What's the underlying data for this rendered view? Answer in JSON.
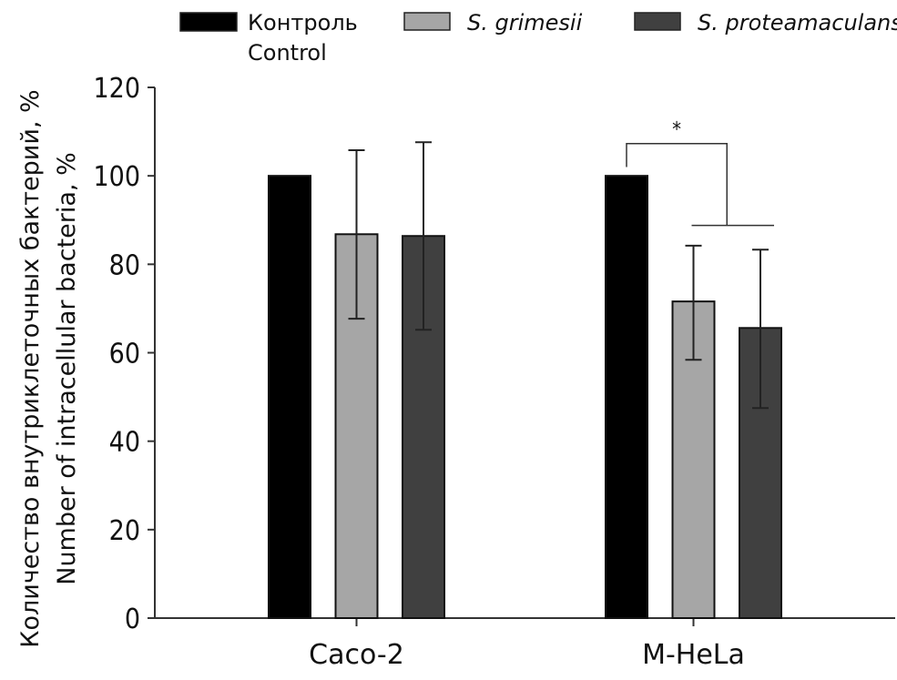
{
  "chart_data": {
    "type": "bar",
    "categories": [
      "Caco-2",
      "M-HeLa"
    ],
    "series": [
      {
        "name": "Контроль",
        "name_en": "Control",
        "color": "#000000",
        "values": [
          100,
          100
        ],
        "err_low": [
          null,
          null
        ],
        "err_high": [
          null,
          null
        ]
      },
      {
        "name": "S. grimesii",
        "color": "#a6a6a6",
        "values": [
          86.8,
          71.6
        ],
        "err_low": [
          67.7,
          58.4
        ],
        "err_high": [
          105.8,
          84.2
        ]
      },
      {
        "name": "S. proteamaculans",
        "color": "#404040",
        "values": [
          86.4,
          65.6
        ],
        "err_low": [
          65.2,
          47.5
        ],
        "err_high": [
          107.6,
          83.3
        ]
      }
    ],
    "ylabel": "Количество внутриклеточных бактерий, %",
    "ylabel_en": "Number of intracellular bacteria, %",
    "xlabel": "",
    "ylim": [
      0,
      120
    ],
    "yticks": [
      0,
      20,
      40,
      60,
      80,
      100,
      120
    ],
    "grid": false,
    "legend_position": "top",
    "annotations": [
      {
        "text": "*",
        "category": "M-HeLa",
        "compares": "Контроль vs S. grimesii, S. proteamaculans"
      }
    ]
  }
}
